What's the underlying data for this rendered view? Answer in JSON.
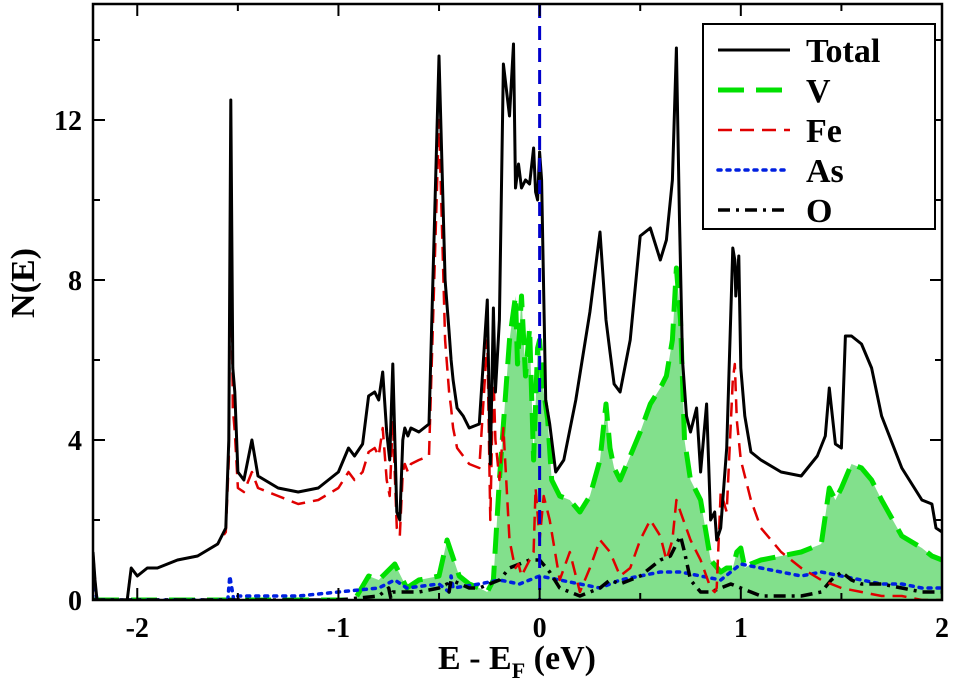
{
  "chart_data": {
    "type": "line",
    "xlabel": "E - E",
    "xlabel_subscript": "F",
    "xlabel_suffix": " (eV)",
    "ylabel": "N(E)",
    "xlim": [
      -2.22,
      2.0
    ],
    "ylim": [
      0,
      14.9
    ],
    "xticks": [
      -2,
      -1,
      0,
      1,
      2
    ],
    "xtick_labels": [
      "-2",
      "-1",
      "0",
      "1",
      "2"
    ],
    "yticks": [
      0,
      4,
      8,
      12
    ],
    "ytick_labels": [
      "0",
      "4",
      "8",
      "12"
    ],
    "fermi_level": 0,
    "legend_position": "top-right",
    "grid": false,
    "series": [
      {
        "name": "Total",
        "color": "#000000",
        "style": "solid",
        "x": [
          -2.22,
          -2.21,
          -2.2,
          -2.15,
          -2.05,
          -2.03,
          -2.0,
          -1.95,
          -1.9,
          -1.8,
          -1.7,
          -1.6,
          -1.56,
          -1.545,
          -1.535,
          -1.525,
          -1.515,
          -1.5,
          -1.47,
          -1.43,
          -1.4,
          -1.3,
          -1.2,
          -1.1,
          -1.0,
          -0.95,
          -0.92,
          -0.88,
          -0.85,
          -0.82,
          -0.8,
          -0.78,
          -0.76,
          -0.745,
          -0.73,
          -0.71,
          -0.695,
          -0.68,
          -0.67,
          -0.655,
          -0.64,
          -0.6,
          -0.55,
          -0.5,
          -0.47,
          -0.45,
          -0.44,
          -0.43,
          -0.41,
          -0.38,
          -0.35,
          -0.3,
          -0.26,
          -0.245,
          -0.23,
          -0.22,
          -0.2,
          -0.18,
          -0.15,
          -0.13,
          -0.12,
          -0.105,
          -0.09,
          -0.07,
          -0.05,
          -0.03,
          -0.02,
          -0.01,
          0.0,
          0.01,
          0.03,
          0.05,
          0.08,
          0.12,
          0.18,
          0.25,
          0.3,
          0.33,
          0.35,
          0.37,
          0.4,
          0.45,
          0.5,
          0.55,
          0.6,
          0.63,
          0.66,
          0.68,
          0.695,
          0.71,
          0.73,
          0.75,
          0.78,
          0.8,
          0.83,
          0.85,
          0.87,
          0.88,
          0.9,
          0.93,
          0.96,
          0.97,
          0.975,
          0.99,
          1.0,
          1.02,
          1.05,
          1.1,
          1.2,
          1.3,
          1.38,
          1.42,
          1.44,
          1.47,
          1.5,
          1.52,
          1.55,
          1.6,
          1.65,
          1.7,
          1.8,
          1.9,
          1.95,
          1.97,
          2.0
        ],
        "y": [
          1.2,
          0.5,
          0,
          0,
          0,
          0.8,
          0.6,
          0.8,
          0.8,
          1.0,
          1.1,
          1.4,
          1.8,
          4.0,
          12.5,
          5.8,
          5.2,
          3.2,
          3.0,
          4.0,
          3.1,
          2.8,
          2.7,
          2.8,
          3.2,
          3.8,
          3.6,
          3.9,
          5.1,
          5.2,
          5.0,
          5.7,
          4.2,
          3.5,
          5.9,
          2.2,
          2.0,
          4.0,
          4.3,
          4.1,
          4.3,
          4.2,
          4.4,
          13.6,
          8.0,
          6.7,
          6.0,
          5.5,
          4.8,
          4.6,
          4.3,
          4.4,
          7.5,
          3.4,
          7.3,
          5.2,
          7.0,
          13.4,
          12.1,
          13.9,
          10.3,
          10.9,
          10.3,
          10.5,
          10.4,
          11.3,
          10.2,
          10.0,
          11.2,
          10.5,
          5.0,
          4.4,
          3.2,
          3.5,
          5.0,
          7.2,
          9.2,
          7.0,
          6.2,
          5.4,
          5.2,
          6.5,
          9.1,
          9.3,
          8.5,
          9.0,
          10.5,
          13.8,
          9.5,
          6.0,
          4.6,
          4.2,
          4.8,
          3.2,
          4.9,
          2.0,
          2.2,
          1.5,
          1.8,
          3.8,
          8.8,
          8.5,
          7.6,
          8.6,
          5.8,
          4.6,
          3.7,
          3.5,
          3.2,
          3.1,
          3.6,
          4.1,
          5.3,
          3.9,
          3.8,
          6.6,
          6.6,
          6.4,
          5.8,
          4.6,
          3.3,
          2.5,
          2.4,
          1.8,
          1.7
        ]
      },
      {
        "name": "V",
        "color": "#00e000",
        "style": "long-dash",
        "fill": "#2ecc40",
        "x": [
          -2.22,
          -0.92,
          -0.85,
          -0.8,
          -0.72,
          -0.66,
          -0.6,
          -0.5,
          -0.46,
          -0.4,
          -0.35,
          -0.3,
          -0.26,
          -0.23,
          -0.2,
          -0.15,
          -0.12,
          -0.11,
          -0.09,
          -0.07,
          -0.05,
          -0.03,
          -0.01,
          0.0,
          0.02,
          0.04,
          0.06,
          0.1,
          0.15,
          0.2,
          0.25,
          0.3,
          0.33,
          0.35,
          0.37,
          0.4,
          0.45,
          0.5,
          0.55,
          0.6,
          0.63,
          0.66,
          0.68,
          0.7,
          0.72,
          0.75,
          0.8,
          0.85,
          0.9,
          0.93,
          0.96,
          0.98,
          1.0,
          1.02,
          1.05,
          1.1,
          1.2,
          1.3,
          1.4,
          1.44,
          1.47,
          1.5,
          1.55,
          1.6,
          1.65,
          1.7,
          1.8,
          1.9,
          1.95,
          2.0
        ],
        "y": [
          0,
          0,
          0.6,
          0.5,
          0.9,
          0.3,
          0.5,
          0.6,
          1.5,
          0.6,
          0.4,
          0.3,
          0.2,
          0.5,
          3.0,
          6.5,
          7.6,
          5.9,
          7.6,
          5.6,
          6.8,
          3.5,
          6.3,
          6.5,
          5.2,
          4.5,
          3.0,
          2.6,
          2.5,
          2.2,
          2.6,
          3.5,
          4.9,
          3.8,
          3.3,
          3.0,
          3.6,
          4.2,
          4.9,
          5.3,
          5.6,
          6.5,
          8.3,
          7.0,
          4.0,
          3.0,
          2.5,
          1.0,
          0.7,
          0.8,
          0.8,
          1.2,
          1.3,
          0.8,
          0.9,
          1.0,
          1.1,
          1.2,
          1.4,
          2.8,
          2.5,
          2.8,
          3.4,
          3.3,
          3.0,
          2.5,
          1.6,
          1.3,
          1.1,
          1.0
        ]
      },
      {
        "name": "Fe",
        "color": "#e00000",
        "style": "dash",
        "x": [
          -2.22,
          -2.21,
          -2.2,
          -2.15,
          -2.05,
          -2.03,
          -2.0,
          -1.95,
          -1.9,
          -1.8,
          -1.7,
          -1.6,
          -1.56,
          -1.545,
          -1.535,
          -1.525,
          -1.515,
          -1.5,
          -1.47,
          -1.43,
          -1.4,
          -1.3,
          -1.2,
          -1.1,
          -1.0,
          -0.95,
          -0.92,
          -0.88,
          -0.85,
          -0.82,
          -0.8,
          -0.78,
          -0.76,
          -0.745,
          -0.73,
          -0.71,
          -0.695,
          -0.68,
          -0.67,
          -0.655,
          -0.64,
          -0.6,
          -0.55,
          -0.5,
          -0.47,
          -0.45,
          -0.44,
          -0.43,
          -0.41,
          -0.38,
          -0.35,
          -0.3,
          -0.26,
          -0.245,
          -0.23,
          -0.22,
          -0.2,
          -0.18,
          -0.15,
          -0.13,
          -0.12,
          -0.105,
          -0.09,
          -0.07,
          -0.05,
          -0.03,
          -0.02,
          0.0,
          0.02,
          0.05,
          0.1,
          0.15,
          0.2,
          0.25,
          0.3,
          0.35,
          0.4,
          0.45,
          0.5,
          0.55,
          0.6,
          0.63,
          0.66,
          0.68,
          0.7,
          0.75,
          0.8,
          0.85,
          0.87,
          0.88,
          0.9,
          0.93,
          0.96,
          0.97,
          0.98,
          1.0,
          1.05,
          1.1,
          1.2,
          1.3,
          1.4,
          1.5,
          1.6,
          1.7,
          1.8,
          1.9,
          2.0
        ],
        "y": [
          1.2,
          0.5,
          0,
          0,
          0,
          0.8,
          0.6,
          0.8,
          0.8,
          1.0,
          1.1,
          1.4,
          1.7,
          3.5,
          10.8,
          4.8,
          4.2,
          2.8,
          2.7,
          3.2,
          2.8,
          2.6,
          2.4,
          2.5,
          2.8,
          3.2,
          3.0,
          3.2,
          3.7,
          3.8,
          3.6,
          4.3,
          3.0,
          2.6,
          4.5,
          1.8,
          1.6,
          3.2,
          3.4,
          3.2,
          3.4,
          3.5,
          3.6,
          12.0,
          6.5,
          5.2,
          4.8,
          4.3,
          3.8,
          3.6,
          3.4,
          3.3,
          6.5,
          2.0,
          5.7,
          4.0,
          3.0,
          4.3,
          1.5,
          1.0,
          0.8,
          0.9,
          0.6,
          0.8,
          1.0,
          1.2,
          2.8,
          1.5,
          2.6,
          2.0,
          0.5,
          1.2,
          0.2,
          0.8,
          1.5,
          1.2,
          0.6,
          0.8,
          1.5,
          2.0,
          1.6,
          1.0,
          1.5,
          2.5,
          2.2,
          1.5,
          1.0,
          0.3,
          0.2,
          0.3,
          2.7,
          2.2,
          5.5,
          5.9,
          4.5,
          3.5,
          2.5,
          1.8,
          1.2,
          0.8,
          0.5,
          0.3,
          0.2,
          0.1,
          0.1,
          0.0,
          0.0
        ]
      },
      {
        "name": "As",
        "color": "#0020e0",
        "style": "dot",
        "x": [
          -2.22,
          -2.21,
          -2.2,
          -1.6,
          -1.55,
          -1.54,
          -1.52,
          -1.5,
          -1.2,
          -1.0,
          -0.8,
          -0.72,
          -0.66,
          -0.5,
          -0.45,
          -0.44,
          -0.43,
          -0.3,
          -0.2,
          -0.1,
          0.0,
          0.1,
          0.2,
          0.3,
          0.4,
          0.5,
          0.6,
          0.7,
          0.8,
          0.9,
          0.95,
          1.0,
          1.1,
          1.2,
          1.3,
          1.4,
          1.5,
          1.6,
          1.7,
          1.8,
          1.9,
          2.0
        ],
        "y": [
          1.0,
          0.3,
          0,
          0,
          0,
          0.6,
          0,
          0.1,
          0.1,
          0.2,
          0.3,
          0.5,
          0.3,
          0.4,
          0.2,
          0.6,
          0.3,
          0.4,
          0.5,
          0.4,
          0.6,
          0.5,
          0.4,
          0.3,
          0.5,
          0.6,
          0.7,
          0.7,
          0.6,
          0.5,
          0.7,
          0.9,
          0.8,
          0.7,
          0.6,
          0.7,
          0.6,
          0.5,
          0.4,
          0.4,
          0.3,
          0.3
        ]
      },
      {
        "name": "O",
        "color": "#000000",
        "style": "dash-dot",
        "x": [
          -2.22,
          -1.0,
          -0.9,
          -0.8,
          -0.75,
          -0.74,
          -0.73,
          -0.6,
          -0.5,
          -0.46,
          -0.45,
          -0.44,
          -0.35,
          -0.3,
          -0.25,
          -0.2,
          -0.15,
          -0.1,
          -0.05,
          0.0,
          0.05,
          0.1,
          0.15,
          0.2,
          0.25,
          0.3,
          0.35,
          0.4,
          0.45,
          0.5,
          0.55,
          0.6,
          0.65,
          0.7,
          0.72,
          0.75,
          0.8,
          0.85,
          0.9,
          0.95,
          1.0,
          1.05,
          1.1,
          1.2,
          1.3,
          1.4,
          1.45,
          1.5,
          1.55,
          1.6,
          1.7,
          1.8,
          1.9,
          2.0
        ],
        "y": [
          0,
          0,
          0.05,
          0.1,
          0.3,
          0.05,
          0.2,
          0.2,
          0.3,
          0.4,
          0.2,
          0.5,
          0.3,
          0.3,
          0.4,
          0.5,
          0.8,
          0.9,
          1.0,
          1.0,
          0.7,
          0.3,
          0.2,
          0.1,
          0.2,
          0.3,
          0.5,
          0.4,
          0.5,
          0.6,
          0.8,
          1.0,
          1.1,
          1.6,
          1.2,
          0.5,
          0.2,
          0.2,
          0.3,
          0.4,
          0.3,
          0.2,
          0.1,
          0.1,
          0.1,
          0.2,
          0.5,
          0.7,
          0.5,
          0.4,
          0.4,
          0.3,
          0.2,
          0.2
        ]
      }
    ]
  }
}
